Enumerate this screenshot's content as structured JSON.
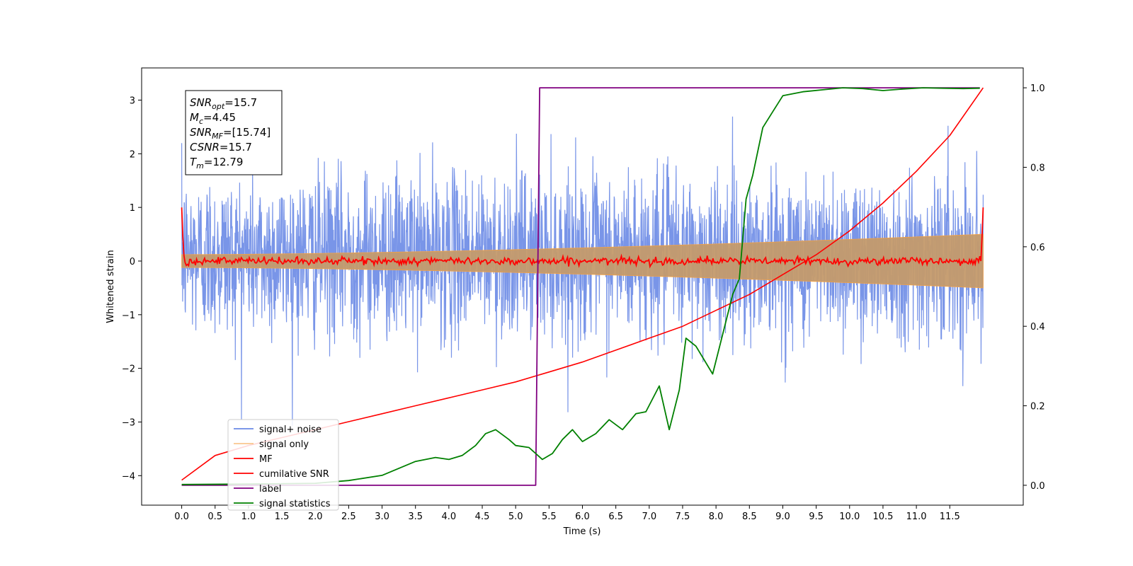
{
  "chart_data": {
    "type": "line",
    "title": "",
    "xlabel": "Time (s)",
    "ylabel": "Whitened strain",
    "xlim": [
      -0.6,
      12.6
    ],
    "ylim": [
      -4.55,
      3.6
    ],
    "y2lim": [
      -0.05,
      1.05
    ],
    "grid": false,
    "legend_location": "lower-left",
    "x_ticks": [
      0.0,
      0.5,
      1.0,
      1.5,
      2.0,
      2.5,
      3.0,
      3.5,
      4.0,
      4.5,
      5.0,
      5.5,
      6.0,
      6.5,
      7.0,
      7.5,
      8.0,
      8.5,
      9.0,
      9.5,
      10.0,
      10.5,
      11.0,
      11.5
    ],
    "x_tick_labels": [
      "0.0",
      "0.5",
      "1.0",
      "1.5",
      "2.0",
      "2.5",
      "3.0",
      "3.5",
      "4.0",
      "4.5",
      "5.0",
      "5.5",
      "6.0",
      "6.5",
      "7.0",
      "7.5",
      "8.0",
      "8.5",
      "9.0",
      "9.5",
      "10.0",
      "10.5",
      "11.0",
      "11.5"
    ],
    "y_ticks": [
      -4,
      -3,
      -2,
      -1,
      0,
      1,
      2,
      3
    ],
    "y_tick_labels": [
      "−4",
      "−3",
      "−2",
      "−1",
      "0",
      "1",
      "2",
      "3"
    ],
    "y2_ticks": [
      0.0,
      0.2,
      0.4,
      0.6,
      0.8,
      1.0
    ],
    "y2_tick_labels": [
      "0.0",
      "0.2",
      "0.4",
      "0.6",
      "0.8",
      "1.0"
    ],
    "colors": {
      "signal_noise": "#6a8ae6",
      "signal_only": "#f5a142",
      "envelope_fill": "#c49a6c",
      "mf": "#ff0000",
      "cumulative_snr": "#ff0000",
      "label": "#800080",
      "signal_statistics": "#008000"
    },
    "annotation": {
      "lines": [
        {
          "base": "SNR",
          "sub": "opt",
          "rest": "=15.7"
        },
        {
          "base": "M",
          "sub": "c",
          "rest": "=4.45"
        },
        {
          "base": "SNR",
          "sub": "MF",
          "rest": "=[15.74]"
        },
        {
          "base": "CSNR",
          "sub": "",
          "rest": "=15.7"
        },
        {
          "base": "T",
          "sub": "m",
          "rest": "=12.79"
        }
      ]
    },
    "legend": [
      "signal+ noise",
      "signal only",
      "MF",
      "cumilative SNR",
      "label",
      "signal statistics"
    ],
    "series": [
      {
        "name": "signal+ noise",
        "axis": "left",
        "x_range": [
          0.0,
          12.0
        ],
        "approx_std": 1.05,
        "approx_peak_range": [
          -4.1,
          3.45
        ]
      },
      {
        "name": "signal only",
        "axis": "left",
        "x_range": [
          0.0,
          12.0
        ],
        "envelope_start": 0.12,
        "envelope_end": 0.5
      },
      {
        "name": "MF",
        "axis": "left",
        "x_range": [
          0.0,
          12.0
        ],
        "start_value": 1.0,
        "baseline": 0.0,
        "end_value": 1.0
      },
      {
        "name": "cumilative SNR",
        "axis": "right",
        "x": [
          0.0,
          0.5,
          1.0,
          1.5,
          2.0,
          2.5,
          3.0,
          3.5,
          4.0,
          4.5,
          5.0,
          5.5,
          6.0,
          6.5,
          7.0,
          7.5,
          8.0,
          8.5,
          9.0,
          9.5,
          10.0,
          10.5,
          11.0,
          11.5,
          12.0
        ],
        "y": [
          0.013,
          0.075,
          0.1,
          0.12,
          0.14,
          0.16,
          0.18,
          0.2,
          0.22,
          0.24,
          0.26,
          0.285,
          0.31,
          0.34,
          0.37,
          0.4,
          0.44,
          0.48,
          0.53,
          0.58,
          0.64,
          0.71,
          0.79,
          0.88,
          1.0
        ]
      },
      {
        "name": "label",
        "axis": "right",
        "x": [
          0.0,
          5.3,
          5.36,
          11.95
        ],
        "y": [
          0.0,
          0.0,
          1.0,
          1.0
        ]
      },
      {
        "name": "signal statistics",
        "axis": "right",
        "x": [
          0.0,
          1.0,
          2.0,
          2.5,
          3.0,
          3.5,
          3.8,
          4.0,
          4.2,
          4.4,
          4.55,
          4.7,
          4.9,
          5.0,
          5.2,
          5.4,
          5.55,
          5.7,
          5.85,
          6.0,
          6.2,
          6.4,
          6.6,
          6.8,
          6.95,
          7.15,
          7.3,
          7.45,
          7.55,
          7.7,
          7.95,
          8.1,
          8.25,
          8.35,
          8.45,
          8.55,
          8.7,
          8.85,
          9.0,
          9.3,
          9.6,
          9.9,
          10.2,
          10.5,
          10.8,
          11.1,
          11.4,
          11.7,
          11.95
        ],
        "y": [
          0.002,
          0.003,
          0.005,
          0.012,
          0.025,
          0.06,
          0.07,
          0.065,
          0.075,
          0.1,
          0.13,
          0.14,
          0.115,
          0.1,
          0.095,
          0.065,
          0.08,
          0.115,
          0.14,
          0.11,
          0.13,
          0.165,
          0.14,
          0.18,
          0.185,
          0.25,
          0.14,
          0.24,
          0.37,
          0.35,
          0.28,
          0.38,
          0.48,
          0.52,
          0.72,
          0.78,
          0.9,
          0.94,
          0.98,
          0.99,
          0.995,
          1.0,
          0.998,
          0.993,
          0.997,
          1.0,
          0.999,
          0.998,
          0.999
        ]
      }
    ]
  }
}
